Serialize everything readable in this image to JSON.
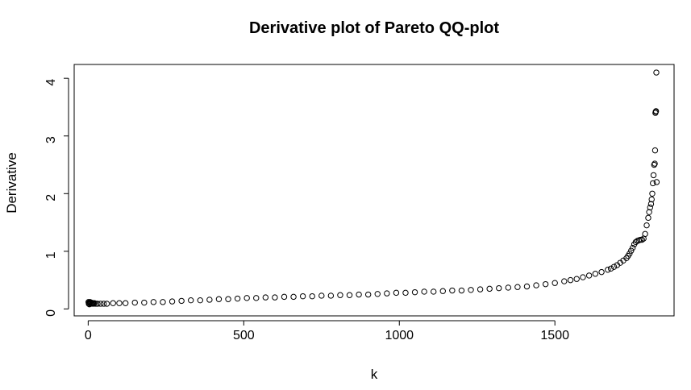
{
  "chart_data": {
    "type": "scatter",
    "title": "Derivative plot of Pareto QQ-plot",
    "xlabel": "k",
    "ylabel": "Derivative",
    "xlim": [
      -45,
      1883
    ],
    "ylim": [
      -0.12,
      4.24
    ],
    "grid": false,
    "legend": "none",
    "marker": "open-circle",
    "x_ticks": [
      0,
      500,
      1000,
      1500
    ],
    "x_tick_labels": [
      "0",
      "500",
      "1000",
      "1500"
    ],
    "y_ticks": [
      0,
      1,
      2,
      3,
      4
    ],
    "y_tick_labels": [
      "0",
      "1",
      "2",
      "3",
      "4"
    ],
    "series": [
      {
        "x": [
          1,
          2,
          3,
          4,
          5,
          6,
          8,
          10,
          12,
          14,
          16,
          18,
          20,
          25,
          30,
          40,
          50,
          60,
          80,
          100,
          120,
          150,
          180,
          210,
          240,
          270,
          300,
          330,
          360,
          390,
          420,
          450,
          480,
          510,
          540,
          570,
          600,
          630,
          660,
          690,
          720,
          750,
          780,
          810,
          840,
          870,
          900,
          930,
          960,
          990,
          1020,
          1050,
          1080,
          1110,
          1140,
          1170,
          1200,
          1230,
          1260,
          1290,
          1320,
          1350,
          1380,
          1410,
          1440,
          1470,
          1500,
          1530,
          1550,
          1570,
          1590,
          1610,
          1630,
          1650,
          1670,
          1680,
          1690,
          1700,
          1710,
          1720,
          1730,
          1735,
          1740,
          1745,
          1750,
          1755,
          1760,
          1765,
          1770,
          1775,
          1780,
          1785,
          1790,
          1795,
          1800,
          1803,
          1806,
          1809,
          1811,
          1813,
          1815,
          1817,
          1819,
          1821,
          1822,
          1823,
          1824,
          1825,
          1826,
          1827
        ],
        "y": [
          0.12,
          0.09,
          0.11,
          0.08,
          0.1,
          0.12,
          0.1,
          0.11,
          0.09,
          0.1,
          0.1,
          0.09,
          0.1,
          0.09,
          0.09,
          0.09,
          0.09,
          0.09,
          0.1,
          0.1,
          0.1,
          0.11,
          0.11,
          0.12,
          0.12,
          0.13,
          0.14,
          0.15,
          0.15,
          0.16,
          0.17,
          0.17,
          0.18,
          0.19,
          0.19,
          0.2,
          0.2,
          0.21,
          0.21,
          0.22,
          0.22,
          0.23,
          0.23,
          0.24,
          0.24,
          0.25,
          0.25,
          0.26,
          0.27,
          0.28,
          0.28,
          0.29,
          0.3,
          0.3,
          0.31,
          0.32,
          0.32,
          0.33,
          0.34,
          0.35,
          0.36,
          0.37,
          0.38,
          0.39,
          0.41,
          0.43,
          0.45,
          0.48,
          0.5,
          0.52,
          0.55,
          0.58,
          0.61,
          0.64,
          0.68,
          0.7,
          0.73,
          0.76,
          0.8,
          0.84,
          0.88,
          0.92,
          0.96,
          1.01,
          1.06,
          1.12,
          1.16,
          1.18,
          1.19,
          1.2,
          1.2,
          1.22,
          1.3,
          1.45,
          1.58,
          1.68,
          1.76,
          1.82,
          1.9,
          2.0,
          2.18,
          2.32,
          2.5,
          2.52,
          2.75,
          3.4,
          3.42,
          3.43,
          4.1,
          2.2
        ]
      }
    ]
  }
}
